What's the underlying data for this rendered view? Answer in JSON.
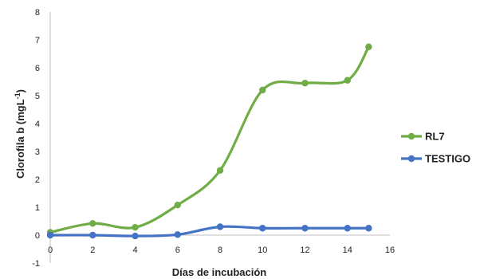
{
  "chart_data": {
    "type": "line",
    "title": "",
    "xlabel": "Días de incubación",
    "ylabel_main": "Clorofila b (mgL",
    "ylabel_sup": "-1",
    "ylabel_close": ")",
    "xlim": [
      0,
      16
    ],
    "ylim": [
      -1,
      8
    ],
    "x_ticks": [
      "0",
      "2",
      "4",
      "6",
      "8",
      "10",
      "12",
      "14",
      "16"
    ],
    "y_ticks": [
      "-1",
      "0",
      "1",
      "2",
      "3",
      "4",
      "5",
      "6",
      "7",
      "8"
    ],
    "grid": false,
    "legend_position": "right",
    "series": [
      {
        "name": "RL7",
        "color": "#70ad47",
        "x": [
          0,
          2,
          4,
          6,
          8,
          10,
          12,
          14,
          15
        ],
        "y": [
          0.1,
          0.42,
          0.28,
          1.08,
          2.32,
          5.2,
          5.45,
          5.55,
          6.75
        ]
      },
      {
        "name": "TESTIGO",
        "color": "#4472c4",
        "x": [
          0,
          2,
          4,
          6,
          8,
          10,
          12,
          14,
          15
        ],
        "y": [
          0.0,
          0.0,
          -0.03,
          0.02,
          0.3,
          0.25,
          0.25,
          0.25,
          0.25
        ]
      }
    ]
  }
}
